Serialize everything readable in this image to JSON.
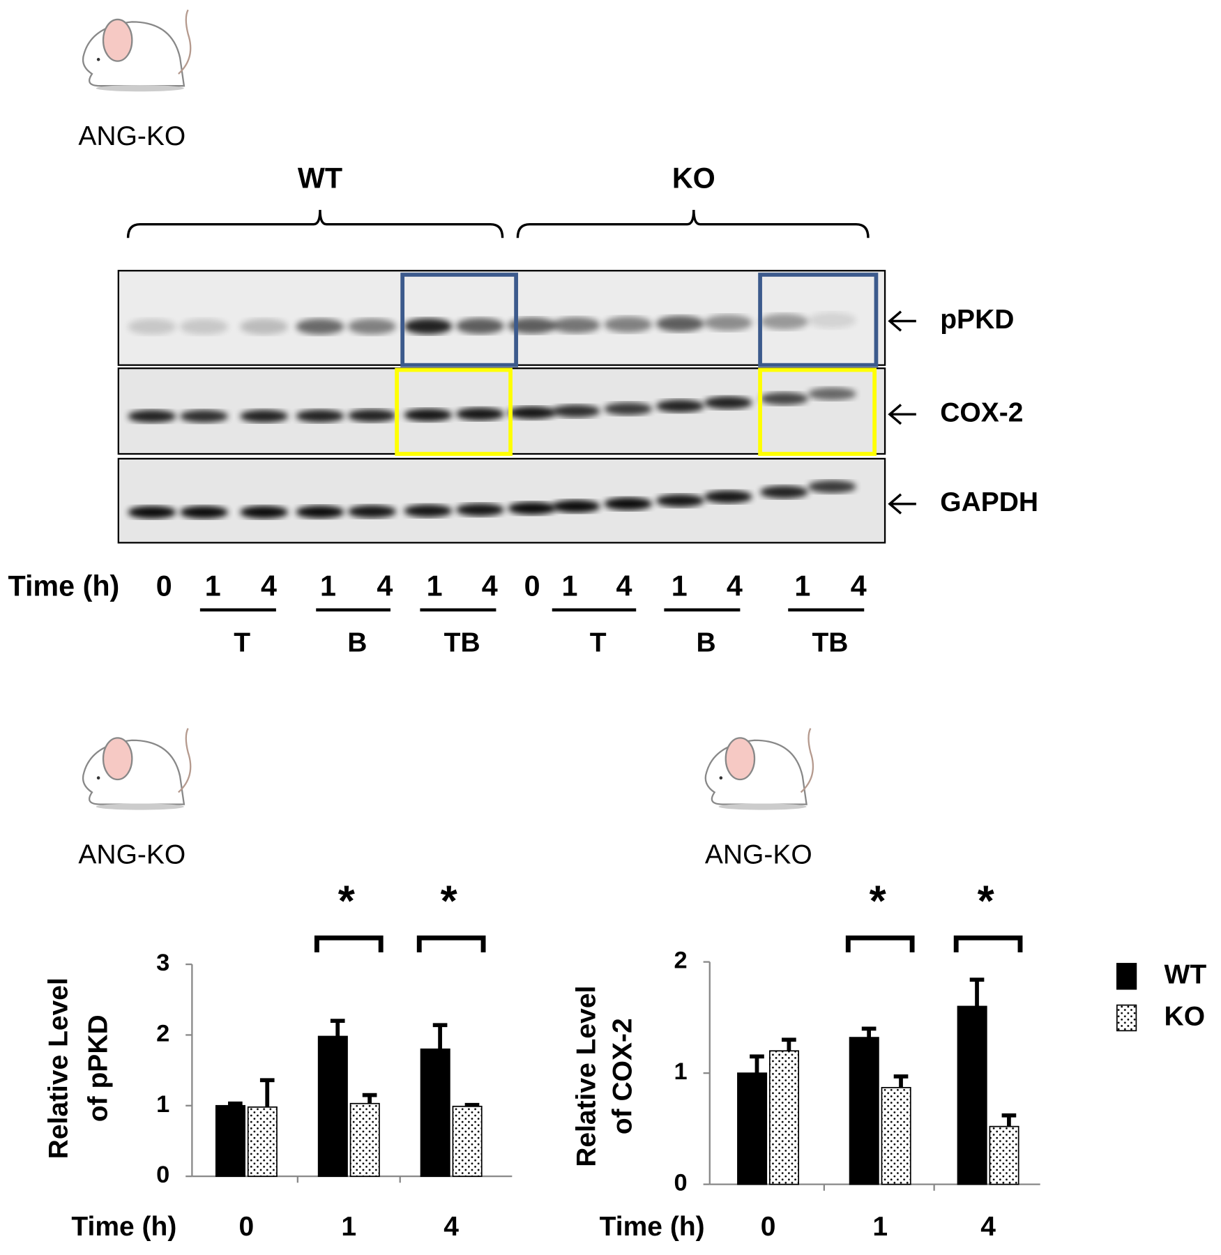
{
  "figure": {
    "mouse_labels": [
      "ANG-KO",
      "ANG-KO",
      "ANG-KO"
    ]
  },
  "blot": {
    "groups": [
      "WT",
      "KO"
    ],
    "bands": [
      "pPKD",
      "COX-2",
      "GAPDH"
    ],
    "time_label": "Time (h)",
    "lanes": [
      "0",
      "1",
      "4",
      "1",
      "4",
      "1",
      "4",
      "0",
      "1",
      "4",
      "1",
      "4",
      "1",
      "4"
    ],
    "treatments": [
      "T",
      "B",
      "TB",
      "T",
      "B",
      "TB"
    ]
  },
  "chart_data": [
    {
      "type": "bar",
      "y_label": [
        "Relative Level",
        "of pPKD"
      ],
      "x_label": "Time (h)",
      "categories": [
        "0",
        "1",
        "4"
      ],
      "ylim": [
        0,
        3
      ],
      "yticks": [
        0,
        1,
        2,
        3
      ],
      "series": [
        {
          "name": "WT",
          "color": "#000000",
          "values": [
            1.0,
            1.98,
            1.8
          ],
          "errors": [
            0.03,
            0.22,
            0.34
          ]
        },
        {
          "name": "KO",
          "color": "dotted",
          "values": [
            0.98,
            1.03,
            0.99
          ],
          "errors": [
            0.38,
            0.12,
            0.02
          ]
        }
      ],
      "annotations": [
        "*",
        "*"
      ]
    },
    {
      "type": "bar",
      "y_label": [
        "Relative Level",
        "of COX-2"
      ],
      "x_label": "Time (h)",
      "categories": [
        "0",
        "1",
        "4"
      ],
      "ylim": [
        0,
        2
      ],
      "yticks": [
        0,
        1,
        2
      ],
      "series": [
        {
          "name": "WT",
          "color": "#000000",
          "values": [
            1.0,
            1.32,
            1.6
          ],
          "errors": [
            0.15,
            0.08,
            0.24
          ]
        },
        {
          "name": "KO",
          "color": "dotted",
          "values": [
            1.2,
            0.87,
            0.52
          ],
          "errors": [
            0.1,
            0.1,
            0.1
          ]
        }
      ],
      "annotations": [
        "*",
        "*"
      ],
      "legend": "right"
    }
  ]
}
